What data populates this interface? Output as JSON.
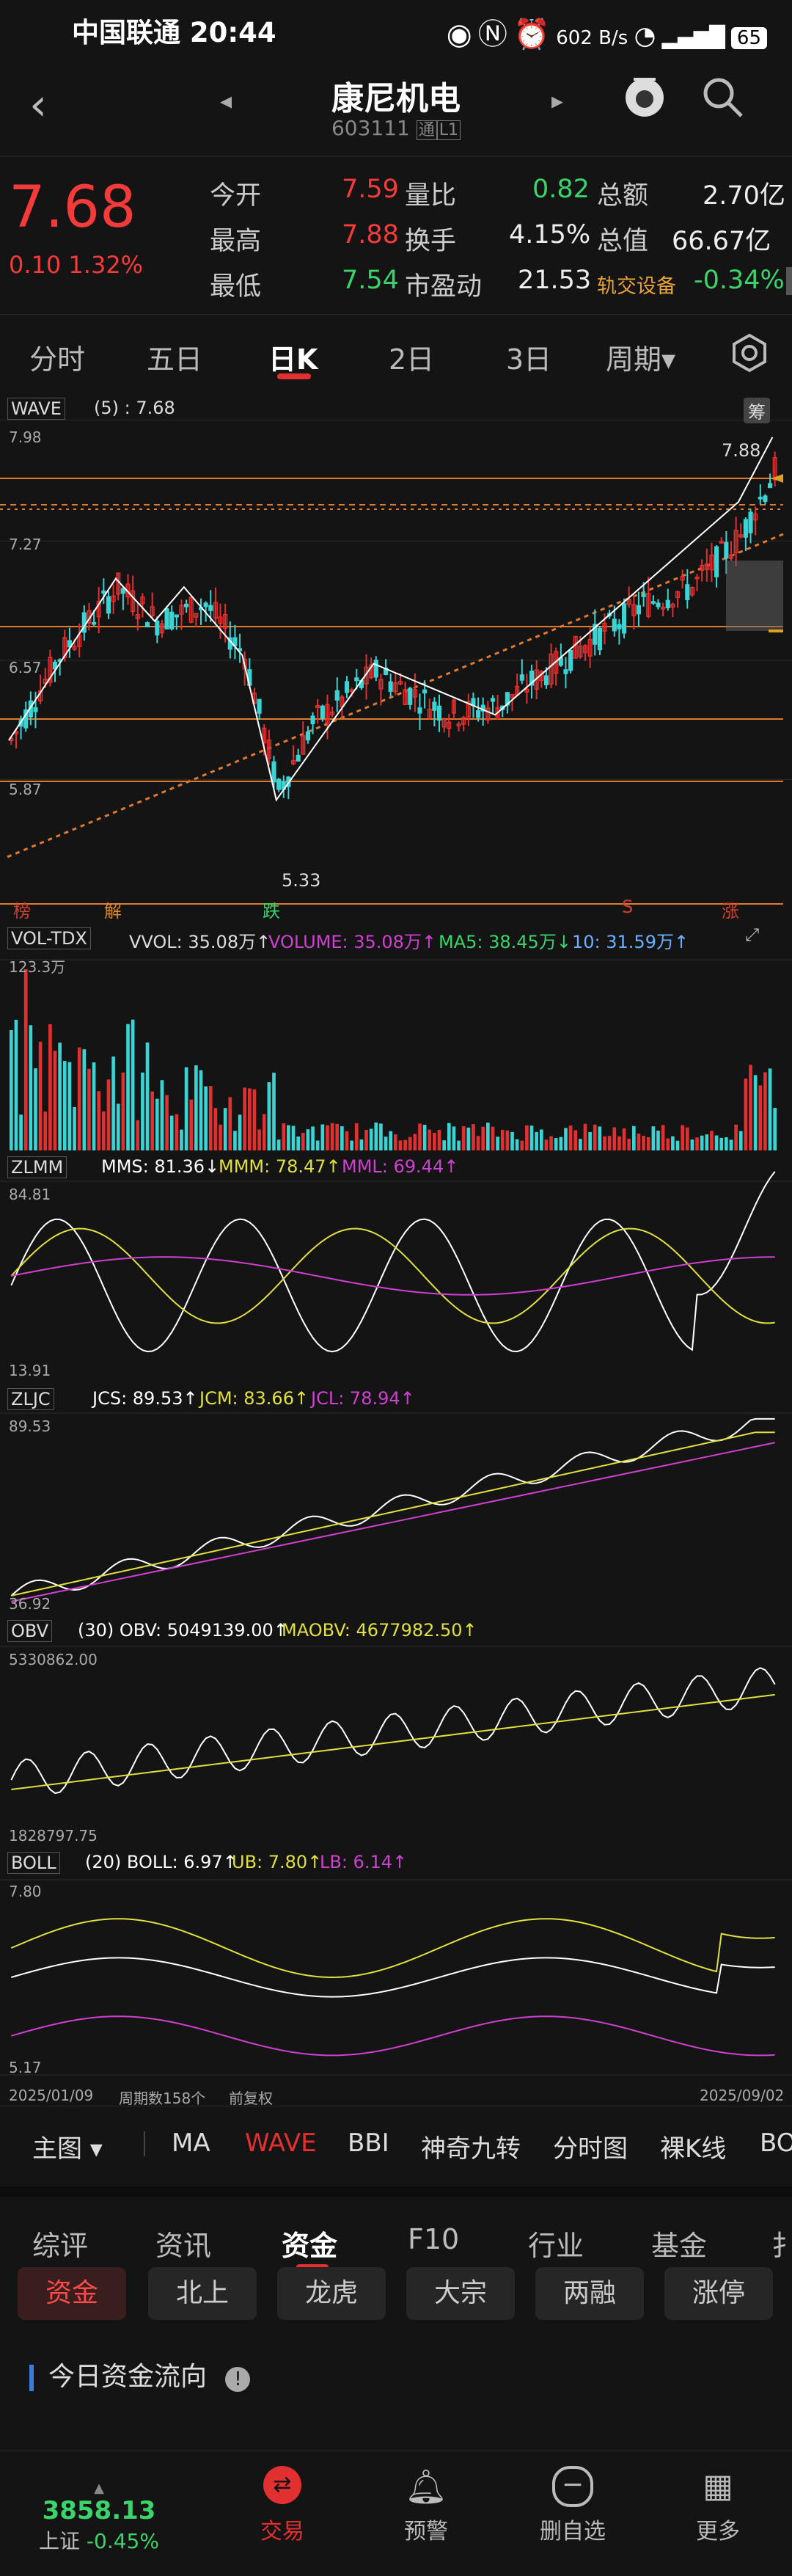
{
  "status": {
    "carrier": "中国联通",
    "time": "20:44",
    "speed": "602 B/s",
    "battery": "65"
  },
  "header": {
    "title": "康尼机电",
    "code": "603111",
    "badge1": "通",
    "badge2": "L1"
  },
  "quote": {
    "price": "7.68",
    "change": "0.10",
    "pct": "1.32%",
    "rows": [
      [
        "今开",
        "7.59",
        "量比",
        "0.82",
        "总额",
        "2.70亿"
      ],
      [
        "最高",
        "7.88",
        "换手",
        "4.15%",
        "总值",
        "66.67亿"
      ],
      [
        "最低",
        "7.54",
        "市盈动",
        "21.53",
        "轨交设备",
        "-0.34%"
      ]
    ]
  },
  "tabs": [
    "分时",
    "五日",
    "日K",
    "2日",
    "3日",
    "周期▾"
  ],
  "active_tab": "日K",
  "main_chart": {
    "label": "WAVE",
    "param": "(5) : 7.68",
    "ymax": "7.98",
    "y2": "7.27",
    "y3": "6.57",
    "y4": "5.87",
    "hi_label": "7.88",
    "lo_label": "5.33",
    "chou": "筹",
    "markers": [
      "榜",
      "解",
      "跌",
      "S",
      "涨"
    ]
  },
  "vol": {
    "label": "VOL-TDX",
    "text1": "VVOL: 35.08万↑",
    "text2": "VOLUME: 35.08万↑",
    "text3": "MA5: 38.45万↓",
    "text4": "10: 31.59万↑",
    "ymax": "123.3万"
  },
  "zlmm": {
    "label": "ZLMM",
    "text1": "MMS: 81.36↓",
    "text2": "MMM: 78.47↑",
    "text3": "MML: 69.44↑",
    "ymax": "84.81",
    "ymin": "13.91"
  },
  "zljc": {
    "label": "ZLJC",
    "text1": "JCS: 89.53↑",
    "text2": "JCM: 83.66↑",
    "text3": "JCL: 78.94↑",
    "ymax": "89.53",
    "ymin": "36.92"
  },
  "obv": {
    "label": "OBV",
    "text1": "(30) OBV: 5049139.00↑",
    "text2": "MAOBV: 4677982.50↑",
    "ymax": "5330862.00",
    "ymin": "1828797.75"
  },
  "boll": {
    "label": "BOLL",
    "text1": "(20) BOLL: 6.97↑",
    "text2": "UB: 7.80↑",
    "text3": "LB: 6.14↑",
    "ymax": "7.80",
    "ymin": "5.17"
  },
  "dates": {
    "start": "2025/01/09",
    "period": "周期数158个",
    "adj": "前复权",
    "end": "2025/09/02"
  },
  "indicator_bar": [
    "主图 ▾",
    "MA",
    "WAVE",
    "BBI",
    "神奇九转",
    "分时图",
    "裸K线",
    "BO"
  ],
  "tabs2": [
    "综评",
    "资讯",
    "资金",
    "F10",
    "行业",
    "基金",
    "扌"
  ],
  "active_tab2": "资金",
  "pills": [
    "资金",
    "北上",
    "龙虎",
    "大宗",
    "两融",
    "涨停"
  ],
  "flow_title": "今日资金流向",
  "footer": {
    "index_val": "3858.13",
    "index_name": "上证",
    "index_chg": "-0.45%",
    "items": [
      "交易",
      "预警",
      "删自选",
      "更多"
    ]
  }
}
